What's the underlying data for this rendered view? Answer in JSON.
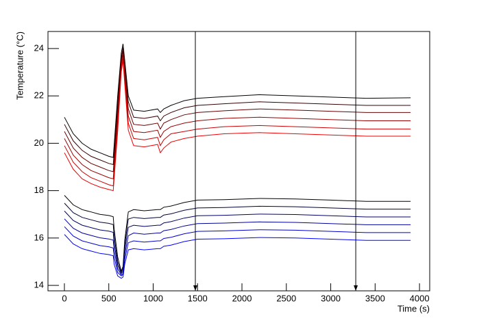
{
  "chart_data": {
    "type": "line",
    "xlabel": "Time (s)",
    "ylabel": "Temperature (°C)",
    "x": [
      0,
      100,
      200,
      300,
      400,
      500,
      550,
      560,
      600,
      640,
      660,
      680,
      720,
      780,
      900,
      1050,
      1080,
      1120,
      1200,
      1350,
      1500,
      1800,
      2200,
      2600,
      3000,
      3400,
      3900
    ],
    "series": [
      {
        "color": "#000000",
        "values": [
          21.1,
          20.4,
          20.0,
          19.75,
          19.6,
          19.45,
          19.4,
          19.9,
          22.0,
          23.8,
          24.2,
          23.5,
          22.0,
          21.4,
          21.35,
          21.45,
          21.3,
          21.45,
          21.6,
          21.8,
          21.9,
          21.97,
          22.05,
          22.0,
          21.95,
          21.9,
          21.92
        ]
      },
      {
        "color": "#330000",
        "values": [
          20.8,
          20.1,
          19.7,
          19.45,
          19.3,
          19.15,
          19.1,
          19.6,
          21.7,
          23.6,
          24.05,
          23.3,
          21.75,
          21.1,
          21.05,
          21.15,
          20.95,
          21.15,
          21.3,
          21.5,
          21.6,
          21.67,
          21.75,
          21.7,
          21.65,
          21.6,
          21.6
        ]
      },
      {
        "color": "#660000",
        "values": [
          20.5,
          19.8,
          19.4,
          19.15,
          19.0,
          18.85,
          18.8,
          19.3,
          21.4,
          23.45,
          23.9,
          23.1,
          21.45,
          20.8,
          20.75,
          20.85,
          20.6,
          20.85,
          21.0,
          21.2,
          21.3,
          21.37,
          21.45,
          21.4,
          21.35,
          21.3,
          21.3
        ]
      },
      {
        "color": "#990000",
        "values": [
          20.2,
          19.5,
          19.1,
          18.85,
          18.7,
          18.55,
          18.5,
          19.0,
          21.1,
          23.3,
          23.75,
          22.9,
          21.15,
          20.5,
          20.45,
          20.55,
          20.25,
          20.5,
          20.7,
          20.85,
          20.95,
          21.05,
          21.1,
          21.05,
          21.0,
          20.95,
          20.95
        ]
      },
      {
        "color": "#cc0000",
        "values": [
          19.9,
          19.2,
          18.8,
          18.55,
          18.4,
          18.25,
          18.2,
          18.7,
          20.8,
          23.15,
          23.6,
          22.7,
          20.85,
          20.2,
          20.15,
          20.25,
          19.9,
          20.15,
          20.4,
          20.5,
          20.6,
          20.7,
          20.75,
          20.7,
          20.65,
          20.6,
          20.6
        ]
      },
      {
        "color": "#ee0000",
        "values": [
          19.6,
          18.9,
          18.5,
          18.3,
          18.15,
          18.05,
          18.0,
          18.5,
          20.5,
          23.0,
          23.5,
          22.5,
          20.55,
          19.9,
          19.85,
          19.95,
          19.6,
          19.8,
          20.05,
          20.2,
          20.3,
          20.4,
          20.45,
          20.4,
          20.35,
          20.3,
          20.3
        ]
      },
      {
        "color": "#000000",
        "values": [
          17.8,
          17.4,
          17.2,
          17.1,
          17.0,
          16.95,
          16.9,
          16.4,
          15.2,
          14.6,
          14.8,
          15.9,
          17.1,
          17.2,
          17.15,
          17.2,
          17.2,
          17.3,
          17.35,
          17.5,
          17.6,
          17.62,
          17.67,
          17.65,
          17.6,
          17.55,
          17.55
        ]
      },
      {
        "color": "#000033",
        "values": [
          17.47,
          17.07,
          16.87,
          16.77,
          16.67,
          16.62,
          16.57,
          16.1,
          15.0,
          14.55,
          14.7,
          15.7,
          16.8,
          16.87,
          16.82,
          16.87,
          16.87,
          16.97,
          17.02,
          17.17,
          17.27,
          17.29,
          17.34,
          17.32,
          17.27,
          17.22,
          17.22
        ]
      },
      {
        "color": "#000066",
        "values": [
          17.14,
          16.74,
          16.54,
          16.44,
          16.34,
          16.29,
          16.24,
          15.8,
          14.85,
          14.5,
          14.6,
          15.5,
          16.45,
          16.54,
          16.49,
          16.54,
          16.54,
          16.64,
          16.69,
          16.84,
          16.94,
          16.96,
          17.01,
          16.99,
          16.94,
          16.89,
          16.89
        ]
      },
      {
        "color": "#000099",
        "values": [
          16.81,
          16.41,
          16.21,
          16.11,
          16.01,
          15.96,
          15.91,
          15.5,
          14.7,
          14.45,
          14.5,
          15.3,
          16.1,
          16.21,
          16.16,
          16.21,
          16.21,
          16.31,
          16.36,
          16.51,
          16.61,
          16.63,
          16.68,
          16.66,
          16.61,
          16.56,
          16.56
        ]
      },
      {
        "color": "#0000cc",
        "values": [
          16.48,
          16.08,
          15.88,
          15.78,
          15.68,
          15.63,
          15.58,
          15.2,
          14.55,
          14.4,
          14.45,
          15.1,
          15.8,
          15.88,
          15.83,
          15.88,
          15.88,
          15.98,
          16.03,
          16.18,
          16.28,
          16.3,
          16.35,
          16.33,
          16.28,
          16.23,
          16.23
        ]
      },
      {
        "color": "#0000ff",
        "values": [
          16.15,
          15.75,
          15.55,
          15.45,
          15.35,
          15.3,
          15.25,
          14.9,
          14.4,
          14.3,
          14.35,
          14.9,
          15.5,
          15.55,
          15.5,
          15.55,
          15.55,
          15.65,
          15.7,
          15.85,
          15.95,
          15.97,
          16.02,
          16.0,
          15.95,
          15.9,
          15.9
        ]
      }
    ],
    "markers": [
      1475,
      3282
    ],
    "xlim": [
      -185,
      4115
    ],
    "xticks": [
      0,
      500,
      1000,
      1500,
      2000,
      2500,
      3000,
      3500,
      4000
    ],
    "ylim": [
      13.77,
      24.72
    ],
    "yticks": [
      14,
      16,
      18,
      20,
      22,
      24
    ]
  }
}
